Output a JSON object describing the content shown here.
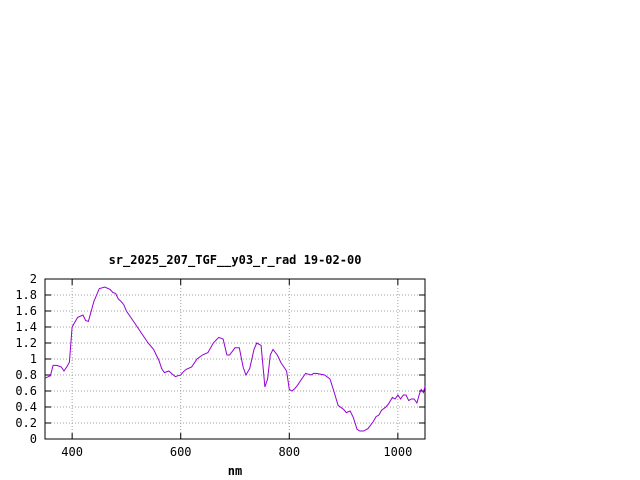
{
  "chart_data": {
    "type": "line",
    "title": "sr_2025_207_TGF__y03_r_rad 19-02-00",
    "xlabel": "nm",
    "ylabel": "",
    "xlim": [
      350,
      1050
    ],
    "ylim": [
      0,
      2
    ],
    "grid": true,
    "x_ticks": [
      400,
      600,
      800,
      1000
    ],
    "y_ticks": [
      0,
      0.2,
      0.4,
      0.6,
      0.8,
      1,
      1.2,
      1.4,
      1.6,
      1.8,
      2
    ],
    "series": [
      {
        "color": "#9400d3",
        "x": [
          350,
          360,
          365,
          372,
          380,
          385,
          390,
          395,
          400,
          410,
          420,
          425,
          430,
          440,
          450,
          460,
          470,
          475,
          480,
          485,
          490,
          495,
          500,
          510,
          520,
          530,
          540,
          550,
          560,
          565,
          570,
          578,
          583,
          590,
          600,
          605,
          610,
          620,
          630,
          640,
          650,
          660,
          670,
          678,
          685,
          690,
          700,
          708,
          715,
          720,
          727,
          735,
          740,
          748,
          755,
          760,
          765,
          770,
          778,
          785,
          790,
          795,
          800,
          805,
          810,
          815,
          820,
          830,
          840,
          845,
          850,
          858,
          865,
          875,
          882,
          890,
          900,
          905,
          912,
          918,
          925,
          930,
          937,
          945,
          955,
          960,
          965,
          970,
          978,
          983,
          990,
          995,
          1000,
          1005,
          1010,
          1015,
          1020,
          1025,
          1030,
          1035,
          1040,
          1043,
          1047,
          1050
        ],
        "y": [
          0.76,
          0.79,
          0.92,
          0.92,
          0.9,
          0.85,
          0.9,
          0.96,
          1.4,
          1.52,
          1.55,
          1.48,
          1.47,
          1.72,
          1.88,
          1.9,
          1.87,
          1.83,
          1.82,
          1.75,
          1.72,
          1.68,
          1.6,
          1.5,
          1.4,
          1.3,
          1.2,
          1.12,
          0.98,
          0.88,
          0.83,
          0.85,
          0.82,
          0.78,
          0.8,
          0.84,
          0.87,
          0.9,
          1.0,
          1.05,
          1.08,
          1.2,
          1.27,
          1.25,
          1.05,
          1.05,
          1.14,
          1.14,
          0.9,
          0.8,
          0.88,
          1.12,
          1.2,
          1.17,
          0.65,
          0.75,
          1.05,
          1.12,
          1.05,
          0.95,
          0.9,
          0.85,
          0.62,
          0.6,
          0.63,
          0.67,
          0.72,
          0.82,
          0.8,
          0.82,
          0.82,
          0.81,
          0.8,
          0.75,
          0.6,
          0.42,
          0.37,
          0.33,
          0.35,
          0.27,
          0.12,
          0.1,
          0.1,
          0.13,
          0.22,
          0.28,
          0.3,
          0.36,
          0.4,
          0.44,
          0.52,
          0.5,
          0.55,
          0.5,
          0.55,
          0.55,
          0.48,
          0.5,
          0.5,
          0.45,
          0.57,
          0.62,
          0.58,
          0.66
        ]
      }
    ]
  }
}
